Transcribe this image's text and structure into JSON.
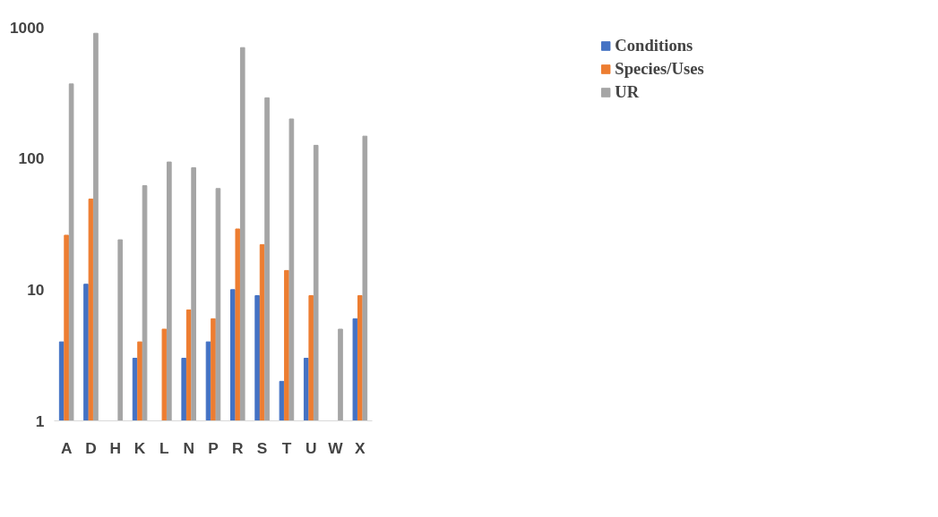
{
  "chart_data": {
    "type": "bar",
    "categories": [
      "A",
      "D",
      "H",
      "K",
      "L",
      "N",
      "P",
      "R",
      "S",
      "T",
      "U",
      "W",
      "X"
    ],
    "series": [
      {
        "name": "Conditions",
        "color": "#4472c4",
        "values": [
          4,
          11,
          null,
          3,
          null,
          3,
          4,
          10,
          9,
          2,
          3,
          null,
          6
        ]
      },
      {
        "name": "Species/Uses",
        "color": "#ed7d31",
        "values": [
          26,
          49,
          null,
          4,
          5,
          7,
          6,
          29,
          22,
          14,
          9,
          null,
          9
        ]
      },
      {
        "name": "UR",
        "color": "#a5a5a5",
        "values": [
          370,
          900,
          24,
          62,
          94,
          85,
          59,
          700,
          290,
          200,
          126,
          5,
          148
        ]
      }
    ],
    "log": "y",
    "ylim": [
      1,
      1000
    ],
    "yticks": [
      1,
      10,
      100,
      1000
    ],
    "grid": false,
    "legend": "top right"
  }
}
